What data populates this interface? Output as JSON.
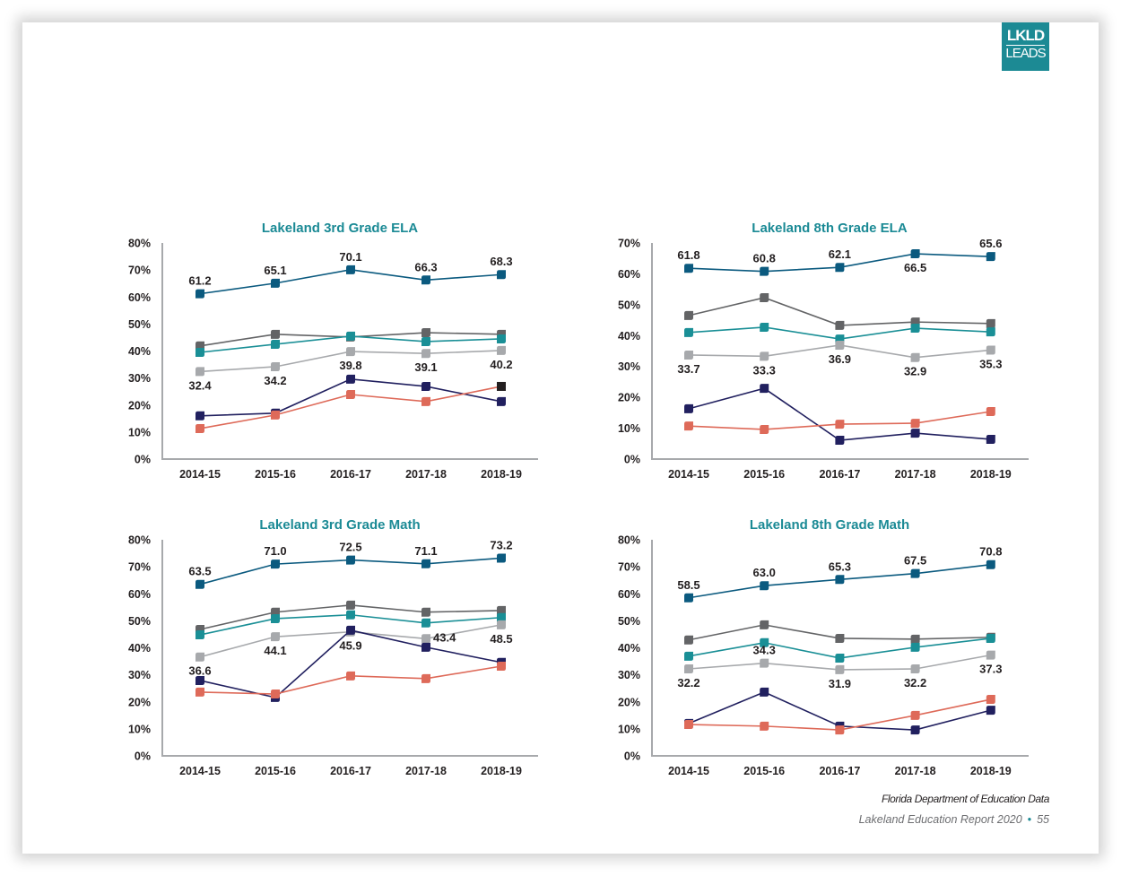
{
  "logo": {
    "line1": "LKLD",
    "line2": "LEADS",
    "color": "#1c8a94"
  },
  "footer": {
    "source": "Florida Department of Education Data",
    "report": "Lakeland Education Report 2020",
    "separator": "•",
    "page": "55"
  },
  "series_colors": {
    "blue": "#0b5a7f",
    "darkgray": "#636466",
    "teal": "#1a8f96",
    "lightgray": "#a7a9ac",
    "navy": "#21205f",
    "salmon": "#de6a59"
  },
  "chart_data": [
    {
      "id": "3rd-ela",
      "type": "line",
      "title": "Lakeland 3rd Grade ELA",
      "xlabel": "",
      "ylabel": "",
      "categories": [
        "2014-15",
        "2015-16",
        "2016-17",
        "2017-18",
        "2018-19"
      ],
      "ylim": [
        0,
        80
      ],
      "yticks": [
        "0%",
        "10%",
        "20%",
        "30%",
        "40%",
        "50%",
        "60%",
        "70%",
        "80%"
      ],
      "grid": false,
      "legend": "none",
      "series": [
        {
          "key": "blue",
          "values": [
            61.2,
            65.1,
            70.1,
            66.3,
            68.3
          ],
          "labels": [
            "61.2",
            "65.1",
            "70.1",
            "66.3",
            "68.3"
          ],
          "label_pos": [
            "above",
            "above",
            "above",
            "above",
            "above"
          ]
        },
        {
          "key": "darkgray",
          "values": [
            41.9,
            46.2,
            45.2,
            46.8,
            46.2
          ]
        },
        {
          "key": "teal",
          "values": [
            39.5,
            42.5,
            45.5,
            43.5,
            44.5
          ]
        },
        {
          "key": "lightgray",
          "values": [
            32.4,
            34.2,
            39.8,
            39.1,
            40.2
          ],
          "labels": [
            "32.4",
            "34.2",
            "39.8",
            "39.1",
            "40.2"
          ],
          "label_pos": [
            "below",
            "below",
            "below",
            "below",
            "below"
          ]
        },
        {
          "key": "navy",
          "values": [
            16.0,
            17.0,
            29.6,
            26.9,
            21.3
          ]
        },
        {
          "key": "salmon",
          "values": [
            11.3,
            16.3,
            23.9,
            21.3,
            26.9
          ],
          "last_marker_color": "#231f20"
        }
      ]
    },
    {
      "id": "8th-ela",
      "type": "line",
      "title": "Lakeland 8th Grade ELA",
      "xlabel": "",
      "ylabel": "",
      "categories": [
        "2014-15",
        "2015-16",
        "2016-17",
        "2017-18",
        "2018-19"
      ],
      "ylim": [
        0,
        70
      ],
      "yticks": [
        "0%",
        "10%",
        "20%",
        "30%",
        "40%",
        "50%",
        "60%",
        "70%"
      ],
      "grid": false,
      "legend": "none",
      "series": [
        {
          "key": "blue",
          "values": [
            61.8,
            60.8,
            62.1,
            66.5,
            65.6
          ],
          "labels": [
            "61.8",
            "60.8",
            "62.1",
            "66.5",
            "65.6"
          ],
          "label_pos": [
            "above",
            "above",
            "above",
            "below",
            "above"
          ]
        },
        {
          "key": "darkgray",
          "values": [
            46.5,
            52.3,
            43.3,
            44.4,
            43.9
          ]
        },
        {
          "key": "teal",
          "values": [
            41.0,
            42.7,
            38.9,
            42.4,
            41.2
          ]
        },
        {
          "key": "lightgray",
          "values": [
            33.7,
            33.3,
            36.9,
            32.9,
            35.3
          ],
          "labels": [
            "33.7",
            "33.3",
            "36.9",
            "32.9",
            "35.3"
          ],
          "label_pos": [
            "below",
            "below",
            "below",
            "below",
            "below"
          ]
        },
        {
          "key": "navy",
          "values": [
            16.3,
            22.9,
            6.1,
            8.4,
            6.4
          ]
        },
        {
          "key": "salmon",
          "values": [
            10.7,
            9.6,
            11.3,
            11.6,
            15.4
          ]
        }
      ]
    },
    {
      "id": "3rd-math",
      "type": "line",
      "title": "Lakeland 3rd Grade Math",
      "xlabel": "",
      "ylabel": "",
      "categories": [
        "2014-15",
        "2015-16",
        "2016-17",
        "2017-18",
        "2018-19"
      ],
      "ylim": [
        0,
        80
      ],
      "yticks": [
        "0%",
        "10%",
        "20%",
        "30%",
        "40%",
        "50%",
        "60%",
        "70%",
        "80%"
      ],
      "grid": false,
      "legend": "none",
      "series": [
        {
          "key": "blue",
          "values": [
            63.5,
            71.0,
            72.5,
            71.1,
            73.2
          ],
          "labels": [
            "63.5",
            "71.0",
            "72.5",
            "71.1",
            "73.2"
          ],
          "label_pos": [
            "above",
            "above",
            "above",
            "above",
            "above"
          ]
        },
        {
          "key": "darkgray",
          "values": [
            46.8,
            53.2,
            55.8,
            53.2,
            53.8
          ]
        },
        {
          "key": "teal",
          "values": [
            44.8,
            50.8,
            52.2,
            49.2,
            51.2
          ]
        },
        {
          "key": "lightgray",
          "values": [
            36.6,
            44.1,
            45.9,
            43.4,
            48.5
          ],
          "labels": [
            "36.6",
            "44.1",
            "45.9",
            "43.4",
            "48.5"
          ],
          "label_pos": [
            "below",
            "below",
            "below",
            "right",
            "below"
          ]
        },
        {
          "key": "navy",
          "values": [
            27.9,
            21.6,
            46.5,
            40.2,
            34.6
          ]
        },
        {
          "key": "salmon",
          "values": [
            23.6,
            22.9,
            29.6,
            28.6,
            33.2
          ]
        }
      ]
    },
    {
      "id": "8th-math",
      "type": "line",
      "title": "Lakeland 8th Grade Math",
      "xlabel": "",
      "ylabel": "",
      "categories": [
        "2014-15",
        "2015-16",
        "2016-17",
        "2017-18",
        "2018-19"
      ],
      "ylim": [
        0,
        80
      ],
      "yticks": [
        "0%",
        "10%",
        "20%",
        "30%",
        "40%",
        "50%",
        "60%",
        "70%",
        "80%"
      ],
      "grid": false,
      "legend": "none",
      "series": [
        {
          "key": "blue",
          "values": [
            58.5,
            63.0,
            65.3,
            67.5,
            70.8
          ],
          "labels": [
            "58.5",
            "63.0",
            "65.3",
            "67.5",
            "70.8"
          ],
          "label_pos": [
            "above",
            "above",
            "above",
            "above",
            "above"
          ]
        },
        {
          "key": "darkgray",
          "values": [
            42.9,
            48.5,
            43.5,
            43.2,
            43.9
          ]
        },
        {
          "key": "teal",
          "values": [
            36.9,
            41.9,
            36.2,
            40.2,
            43.5
          ]
        },
        {
          "key": "lightgray",
          "values": [
            32.2,
            34.3,
            31.9,
            32.2,
            37.3
          ],
          "labels": [
            "32.2",
            "34.3",
            "31.9",
            "32.2",
            "37.3"
          ],
          "label_pos": [
            "below",
            "above",
            "below",
            "below",
            "below"
          ]
        },
        {
          "key": "navy",
          "values": [
            12.0,
            23.6,
            11.0,
            9.6,
            16.9
          ]
        },
        {
          "key": "salmon",
          "values": [
            11.6,
            11.0,
            9.6,
            15.0,
            20.9
          ]
        }
      ]
    }
  ]
}
